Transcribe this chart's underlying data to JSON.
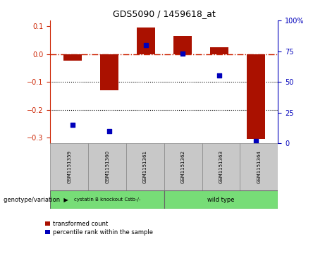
{
  "title": "GDS5090 / 1459618_at",
  "samples": [
    "GSM1151359",
    "GSM1151360",
    "GSM1151361",
    "GSM1151362",
    "GSM1151363",
    "GSM1151364"
  ],
  "red_values": [
    -0.025,
    -0.13,
    0.095,
    0.065,
    0.025,
    -0.305
  ],
  "blue_percentiles": [
    15,
    10,
    80,
    73,
    55,
    2
  ],
  "ylim_left": [
    -0.32,
    0.12
  ],
  "ylim_right": [
    0,
    100
  ],
  "y_ticks_left": [
    -0.3,
    -0.2,
    -0.1,
    0.0,
    0.1
  ],
  "y_ticks_right": [
    0,
    25,
    50,
    75,
    100
  ],
  "group1_label": "cystatin B knockout Cstb-/-",
  "group2_label": "wild type",
  "group_color": "#77DD77",
  "legend_red": "transformed count",
  "legend_blue": "percentile rank within the sample",
  "bar_color": "#AA1100",
  "dot_color": "#0000BB",
  "zero_line_color": "#CC2200",
  "sample_box_color": "#C8C8C8",
  "bar_width": 0.5
}
